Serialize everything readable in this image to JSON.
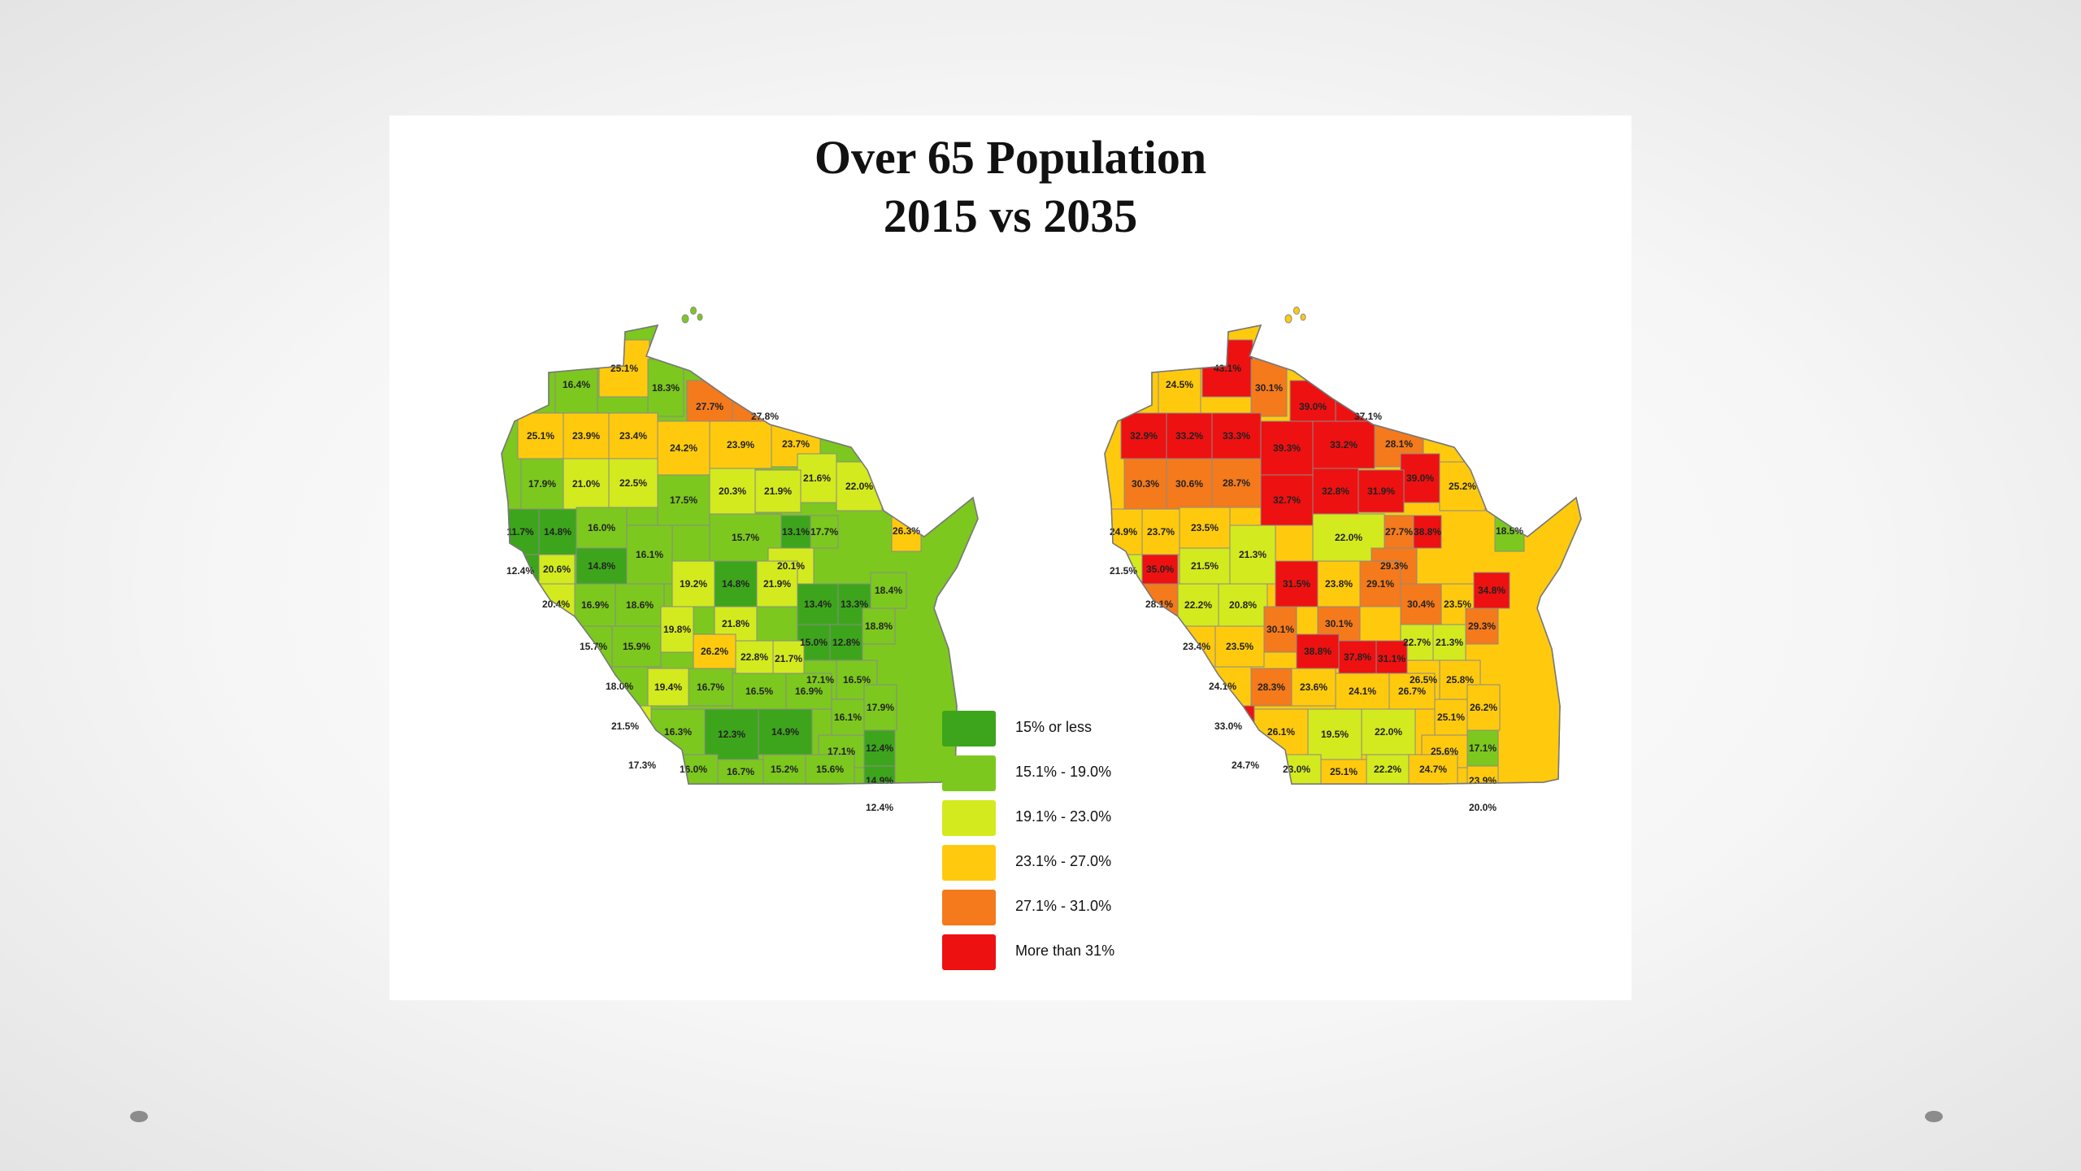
{
  "title": {
    "line1": "Over 65 Population",
    "line2": "2015 vs 2035"
  },
  "colors": {
    "c1": "#3da51c",
    "c2": "#7cc81e",
    "c3": "#d3ea1e",
    "c4": "#ffca0d",
    "c5": "#f47a1c",
    "c6": "#ee1111",
    "border": "#8a8a8a"
  },
  "legend": [
    {
      "label": "15% or less",
      "color": "#3da51c"
    },
    {
      "label": "15.1% - 19.0%",
      "color": "#7cc81e"
    },
    {
      "label": "19.1% - 23.0%",
      "color": "#d3ea1e"
    },
    {
      "label": "23.1% - 27.0%",
      "color": "#ffca0d"
    },
    {
      "label": "27.1% - 31.0%",
      "color": "#f47a1c"
    },
    {
      "label": "More than 31%",
      "color": "#ee1111"
    }
  ],
  "map_2015": {
    "base_color": "#7cc81e",
    "values": [
      "16.4%",
      "25.1%",
      "18.3%",
      "27.7%",
      "27.8%",
      "25.1%",
      "23.9%",
      "23.4%",
      "24.2%",
      "23.9%",
      "23.7%",
      "21.6%",
      "22.0%",
      "17.9%",
      "21.0%",
      "22.5%",
      "17.5%",
      "20.3%",
      "21.9%",
      "26.3%",
      "11.7%",
      "14.8%",
      "16.0%",
      "15.7%",
      "13.1%",
      "17.7%",
      "12.4%",
      "20.6%",
      "14.8%",
      "16.1%",
      "20.1%",
      "20.4%",
      "19.2%",
      "14.8%",
      "21.9%",
      "13.4%",
      "13.3%",
      "18.4%",
      "16.9%",
      "18.6%",
      "21.8%",
      "15.0%",
      "12.8%",
      "18.8%",
      "15.7%",
      "15.9%",
      "19.8%",
      "26.2%",
      "22.8%",
      "21.7%",
      "17.1%",
      "16.5%",
      "18.0%",
      "19.4%",
      "16.7%",
      "16.5%",
      "16.9%",
      "16.1%",
      "17.9%",
      "21.5%",
      "17.1%",
      "16.3%",
      "12.3%",
      "14.9%",
      "12.4%",
      "17.3%",
      "14.9%",
      "16.0%",
      "16.7%",
      "15.2%",
      "15.6%",
      "12.4%"
    ]
  },
  "map_2035": {
    "base_color": "#ffca0d",
    "values": [
      "24.5%",
      "43.1%",
      "30.1%",
      "39.0%",
      "37.1%",
      "32.9%",
      "33.2%",
      "33.3%",
      "39.3%",
      "33.2%",
      "28.1%",
      "39.0%",
      "25.2%",
      "30.3%",
      "30.6%",
      "28.7%",
      "32.7%",
      "32.8%",
      "31.9%",
      "18.5%",
      "24.9%",
      "23.7%",
      "23.5%",
      "22.0%",
      "27.7%",
      "38.8%",
      "21.5%",
      "35.0%",
      "21.5%",
      "21.3%",
      "29.3%",
      "28.1%",
      "31.5%",
      "23.8%",
      "29.1%",
      "30.4%",
      "23.5%",
      "34.8%",
      "22.2%",
      "20.8%",
      "30.1%",
      "22.7%",
      "21.3%",
      "29.3%",
      "23.4%",
      "23.5%",
      "30.1%",
      "38.8%",
      "37.8%",
      "31.1%",
      "26.5%",
      "25.8%",
      "24.1%",
      "28.3%",
      "23.6%",
      "24.1%",
      "26.7%",
      "25.1%",
      "26.2%",
      "33.0%",
      "25.6%",
      "26.1%",
      "19.5%",
      "22.0%",
      "17.1%",
      "24.7%",
      "23.9%",
      "23.0%",
      "25.1%",
      "22.2%",
      "24.7%",
      "20.0%"
    ]
  }
}
